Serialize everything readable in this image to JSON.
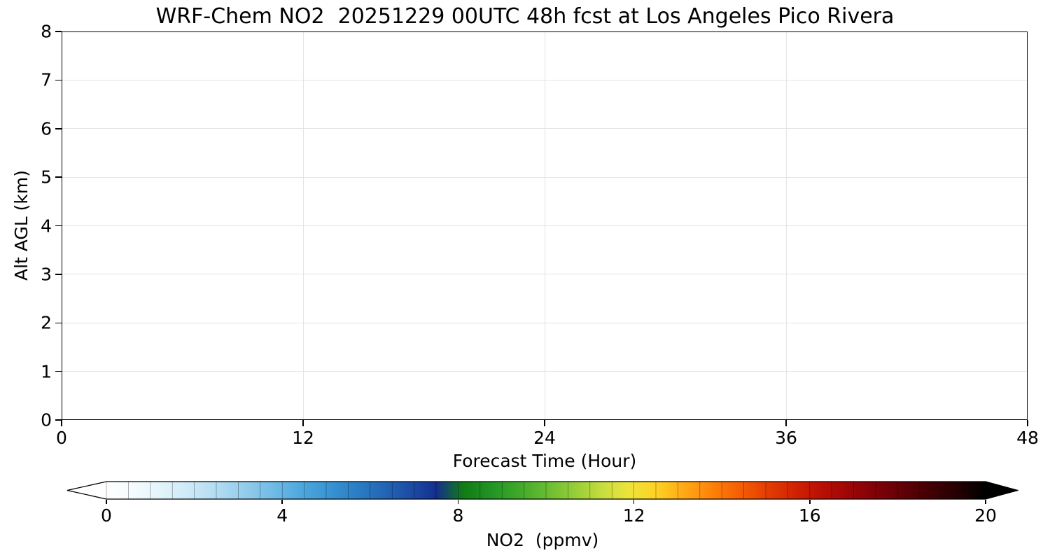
{
  "chart_data": {
    "type": "heatmap",
    "title": "WRF-Chem NO2  20251229 00UTC 48h fcst at Los Angeles Pico Rivera",
    "xlabel": "Forecast Time (Hour)",
    "ylabel": "Alt AGL (km)",
    "xlim": [
      0,
      48
    ],
    "ylim": [
      0,
      8
    ],
    "x_ticks": [
      0,
      12,
      24,
      36,
      48
    ],
    "y_ticks": [
      0,
      1,
      2,
      3,
      4,
      5,
      6,
      7,
      8
    ],
    "grid": true,
    "background": "#ffffff",
    "values": [],
    "colorbar": {
      "label": "NO2  (ppmv)",
      "ticks": [
        0,
        4,
        8,
        12,
        16,
        20
      ],
      "range": [
        0,
        20
      ],
      "extend": "both",
      "segments": 40,
      "colors": [
        "#ffffff",
        "#f4fbfe",
        "#e2f4fb",
        "#cce9f7",
        "#b2dcf2",
        "#94cdec",
        "#72bce5",
        "#50a9de",
        "#3a96d4",
        "#2c80c6",
        "#2468b8",
        "#1c4ea6",
        "#142f8e",
        "#117c15",
        "#219424",
        "#3fa82a",
        "#66bc32",
        "#94cc38",
        "#c4dc3e",
        "#ece43c",
        "#ffd224",
        "#ffaa16",
        "#ff840a",
        "#f66004",
        "#e44002",
        "#d22402",
        "#ba1004",
        "#9e0606",
        "#800208",
        "#600106",
        "#420004",
        "#240002",
        "#000000"
      ]
    }
  }
}
